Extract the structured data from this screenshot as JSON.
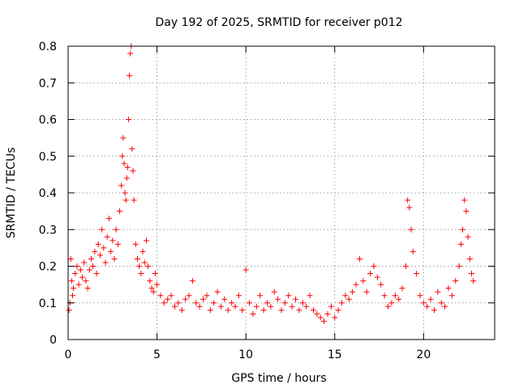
{
  "chart_data": {
    "type": "scatter",
    "title": "Day 192 of 2025, SRMTID for receiver p012",
    "xlabel": "GPS time / hours",
    "ylabel": "SRMTID / TECUs",
    "xlim": [
      0,
      24
    ],
    "ylim": [
      0,
      0.8
    ],
    "grid": true,
    "x_ticks": [
      0,
      5,
      10,
      15,
      20
    ],
    "x_tick_labels": [
      "0",
      "5",
      "10",
      "15",
      "20"
    ],
    "y_ticks": [
      0,
      0.1,
      0.2,
      0.3,
      0.4,
      0.5,
      0.6,
      0.7,
      0.8
    ],
    "y_tick_labels": [
      "0",
      "0.1",
      "0.2",
      "0.3",
      "0.4",
      "0.5",
      "0.6",
      "0.7",
      "0.8"
    ],
    "marker": "+",
    "color": "#ff0000",
    "series": [
      {
        "name": "SRMTID",
        "x": [
          0.05,
          0.1,
          0.15,
          0.2,
          0.25,
          0.3,
          0.4,
          0.5,
          0.6,
          0.7,
          0.8,
          0.9,
          1.0,
          1.1,
          1.2,
          1.3,
          1.4,
          1.5,
          1.6,
          1.7,
          1.8,
          1.9,
          2.0,
          2.1,
          2.2,
          2.3,
          2.4,
          2.5,
          2.6,
          2.7,
          2.8,
          2.9,
          3.0,
          3.05,
          3.1,
          3.15,
          3.2,
          3.25,
          3.3,
          3.35,
          3.4,
          3.45,
          3.5,
          3.55,
          3.6,
          3.65,
          3.7,
          3.8,
          3.9,
          4.0,
          4.1,
          4.2,
          4.3,
          4.4,
          4.5,
          4.6,
          4.7,
          4.8,
          4.9,
          5.0,
          5.2,
          5.4,
          5.6,
          5.8,
          6.0,
          6.2,
          6.4,
          6.6,
          6.8,
          7.0,
          7.2,
          7.4,
          7.6,
          7.8,
          8.0,
          8.2,
          8.4,
          8.6,
          8.8,
          9.0,
          9.2,
          9.4,
          9.6,
          9.8,
          10.0,
          10.2,
          10.4,
          10.6,
          10.8,
          11.0,
          11.2,
          11.4,
          11.6,
          11.8,
          12.0,
          12.2,
          12.4,
          12.6,
          12.8,
          13.0,
          13.2,
          13.4,
          13.6,
          13.8,
          14.0,
          14.2,
          14.4,
          14.6,
          14.8,
          15.0,
          15.2,
          15.4,
          15.6,
          15.8,
          16.0,
          16.2,
          16.4,
          16.6,
          16.8,
          17.0,
          17.2,
          17.4,
          17.6,
          17.8,
          18.0,
          18.2,
          18.4,
          18.6,
          18.8,
          19.0,
          19.1,
          19.2,
          19.3,
          19.4,
          19.6,
          19.8,
          20.0,
          20.2,
          20.4,
          20.6,
          20.8,
          21.0,
          21.2,
          21.4,
          21.6,
          21.8,
          22.0,
          22.1,
          22.2,
          22.3,
          22.4,
          22.5,
          22.6,
          22.7,
          22.8
        ],
        "values": [
          0.08,
          0.1,
          0.22,
          0.16,
          0.12,
          0.14,
          0.18,
          0.2,
          0.15,
          0.19,
          0.17,
          0.21,
          0.16,
          0.14,
          0.19,
          0.22,
          0.2,
          0.24,
          0.18,
          0.26,
          0.23,
          0.3,
          0.25,
          0.21,
          0.28,
          0.33,
          0.24,
          0.27,
          0.22,
          0.3,
          0.26,
          0.35,
          0.42,
          0.5,
          0.55,
          0.48,
          0.4,
          0.38,
          0.44,
          0.47,
          0.6,
          0.72,
          0.78,
          0.8,
          0.52,
          0.46,
          0.38,
          0.26,
          0.22,
          0.2,
          0.18,
          0.24,
          0.21,
          0.27,
          0.2,
          0.16,
          0.14,
          0.13,
          0.18,
          0.15,
          0.12,
          0.1,
          0.11,
          0.12,
          0.09,
          0.1,
          0.08,
          0.11,
          0.12,
          0.16,
          0.1,
          0.09,
          0.11,
          0.12,
          0.08,
          0.1,
          0.13,
          0.09,
          0.11,
          0.08,
          0.1,
          0.09,
          0.12,
          0.08,
          0.19,
          0.1,
          0.07,
          0.09,
          0.12,
          0.08,
          0.1,
          0.09,
          0.13,
          0.11,
          0.08,
          0.1,
          0.12,
          0.09,
          0.11,
          0.08,
          0.1,
          0.09,
          0.12,
          0.08,
          0.07,
          0.06,
          0.05,
          0.07,
          0.09,
          0.06,
          0.08,
          0.1,
          0.12,
          0.11,
          0.13,
          0.15,
          0.22,
          0.16,
          0.13,
          0.18,
          0.2,
          0.17,
          0.15,
          0.12,
          0.09,
          0.1,
          0.12,
          0.11,
          0.14,
          0.2,
          0.38,
          0.36,
          0.3,
          0.24,
          0.18,
          0.12,
          0.1,
          0.09,
          0.11,
          0.08,
          0.13,
          0.1,
          0.09,
          0.14,
          0.12,
          0.16,
          0.2,
          0.26,
          0.3,
          0.38,
          0.35,
          0.28,
          0.22,
          0.18,
          0.16
        ]
      }
    ]
  }
}
